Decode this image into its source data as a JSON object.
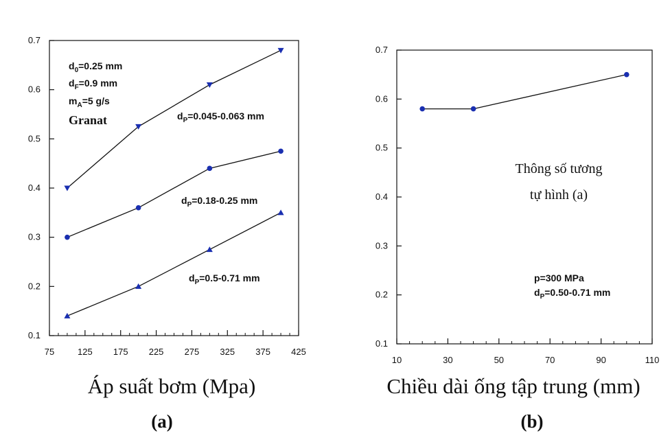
{
  "chart_data": [
    {
      "type": "line",
      "panel_label": "(a)",
      "xlabel": "Áp suất bơm (Mpa)",
      "ylabel": "",
      "xlim": [
        75,
        425
      ],
      "ylim": [
        0.1,
        0.7
      ],
      "xticks": [
        "75",
        "125",
        "175",
        "225",
        "275",
        "325",
        "375",
        "425"
      ],
      "yticks": [
        "0.1",
        "0.2",
        "0.3",
        "0.4",
        "0.5",
        "0.6",
        "0.7"
      ],
      "params": {
        "d0": {
          "base": "d",
          "sub": "0",
          "rest": "=0.25 mm"
        },
        "dF": {
          "base": "d",
          "sub": "F",
          "rest": "=0.9 mm"
        },
        "mA": {
          "base": "m",
          "sub": "A",
          "rest": "=5 g/s"
        },
        "material": "Granat"
      },
      "series": [
        {
          "name": "dP=0.045-0.063 mm",
          "label_base": "d",
          "label_sub": "P",
          "label_rest": "=0.045-0.063 mm",
          "marker": "triangle-down",
          "x": [
            100,
            200,
            300,
            400
          ],
          "y": [
            0.4,
            0.525,
            0.61,
            0.68
          ]
        },
        {
          "name": "dP=0.18-0.25 mm",
          "label_base": "d",
          "label_sub": "P",
          "label_rest": "=0.18-0.25 mm",
          "marker": "circle",
          "x": [
            100,
            200,
            300,
            400
          ],
          "y": [
            0.3,
            0.36,
            0.44,
            0.475
          ]
        },
        {
          "name": "dP=0.5-0.71 mm",
          "label_base": "d",
          "label_sub": "P",
          "label_rest": "=0.5-0.71 mm",
          "marker": "triangle-up",
          "x": [
            100,
            200,
            300,
            400
          ],
          "y": [
            0.14,
            0.2,
            0.275,
            0.35
          ]
        }
      ]
    },
    {
      "type": "line",
      "panel_label": "(b)",
      "xlabel": "Chiều dài ống tập trung (mm)",
      "ylabel": "",
      "xlim": [
        10,
        110
      ],
      "ylim": [
        0.1,
        0.7
      ],
      "xticks": [
        "10",
        "30",
        "50",
        "70",
        "90",
        "110"
      ],
      "yticks": [
        "0.1",
        "0.2",
        "0.3",
        "0.4",
        "0.5",
        "0.6",
        "0.7"
      ],
      "note_line1": "Thông số tương",
      "note_line2": "tự hình (a)",
      "params": {
        "p": "p=300 MPa",
        "dP": {
          "base": "d",
          "sub": "P",
          "rest": "=0.50-0.71 mm"
        }
      },
      "series": [
        {
          "name": "dP=0.50-0.71 mm",
          "marker": "circle",
          "x": [
            20,
            40,
            100
          ],
          "y": [
            0.58,
            0.58,
            0.65
          ]
        }
      ]
    }
  ]
}
